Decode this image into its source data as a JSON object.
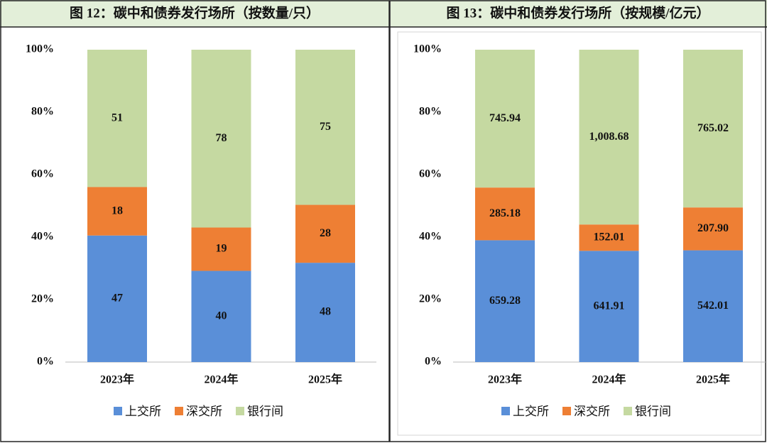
{
  "chart_data": [
    {
      "type": "stacked_percent_bar",
      "title": "图 12：碳中和债券发行场所（按数量/只）",
      "categories": [
        "2023年",
        "2024年",
        "2025年"
      ],
      "series": [
        {
          "name": "上交所",
          "color": "#5a8fd8",
          "values": [
            47,
            40,
            48
          ]
        },
        {
          "name": "深交所",
          "color": "#ee7f34",
          "values": [
            18,
            19,
            28
          ]
        },
        {
          "name": "银行间",
          "color": "#c5d9a1",
          "values": [
            51,
            78,
            75
          ]
        }
      ],
      "ylim": [
        0,
        100
      ],
      "yticks": [
        {
          "value": 0,
          "label": "0%"
        },
        {
          "value": 20,
          "label": "20%"
        },
        {
          "value": 40,
          "label": "40%"
        },
        {
          "value": 60,
          "label": "60%"
        },
        {
          "value": 80,
          "label": "80%"
        },
        {
          "value": 100,
          "label": "100%"
        }
      ],
      "legend": "bottom"
    },
    {
      "type": "stacked_percent_bar",
      "title": "图 13：碳中和债券发行场所（按规模/亿元）",
      "categories": [
        "2023年",
        "2024年",
        "2025年"
      ],
      "series": [
        {
          "name": "上交所",
          "color": "#5a8fd8",
          "values": [
            659.28,
            641.91,
            542.01
          ],
          "value_labels": [
            "659.28",
            "641.91",
            "542.01"
          ]
        },
        {
          "name": "深交所",
          "color": "#ee7f34",
          "values": [
            285.18,
            152.01,
            207.9
          ],
          "value_labels": [
            "285.18",
            "152.01",
            "207.90"
          ]
        },
        {
          "name": "银行间",
          "color": "#c5d9a1",
          "values": [
            745.94,
            1008.68,
            765.02
          ],
          "value_labels": [
            "745.94",
            "1,008.68",
            "765.02"
          ]
        }
      ],
      "ylim": [
        0,
        100
      ],
      "yticks": [
        {
          "value": 0,
          "label": "0%"
        },
        {
          "value": 20,
          "label": "20%"
        },
        {
          "value": 40,
          "label": "40%"
        },
        {
          "value": 60,
          "label": "60%"
        },
        {
          "value": 80,
          "label": "80%"
        },
        {
          "value": 100,
          "label": "100%"
        }
      ],
      "legend": "bottom"
    }
  ]
}
